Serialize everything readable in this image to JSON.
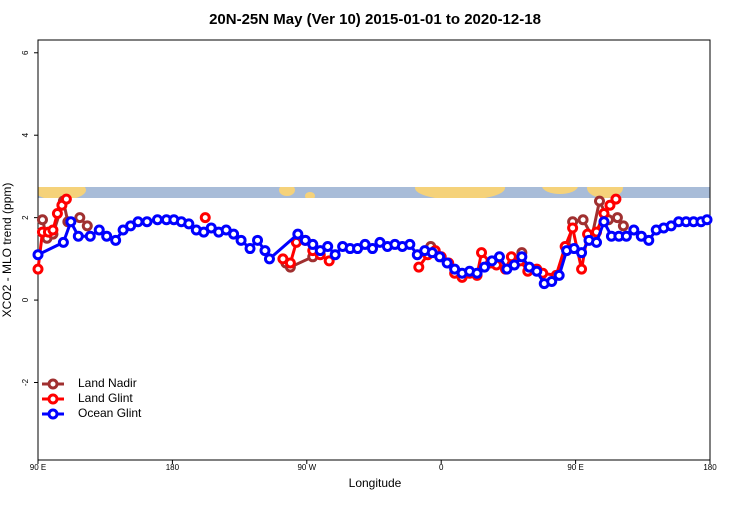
{
  "chart_data": {
    "type": "line",
    "title": "20N-25N May (Ver 10)   2015-01-01 to 2020-12-18",
    "x_label": "Longitude",
    "y_label": "XCO2 - MLO trend (ppm)",
    "xlim": [
      90,
      540
    ],
    "xticks": [
      {
        "value": 90,
        "label": "90 E"
      },
      180,
      {
        "value": 270,
        "label": "90 W"
      },
      {
        "value": 360,
        "label": "0"
      },
      {
        "value": 450,
        "label": "90 E"
      },
      {
        "value": 540,
        "label": "180"
      }
    ],
    "ylim": [
      -3.88,
      6.31
    ],
    "yticks": [
      -2,
      0,
      2,
      4,
      6
    ],
    "legend": "bottom-left",
    "series": [
      {
        "name": "Land Nadir",
        "color": "#a03030",
        "x": [
          93,
          96,
          100,
          107,
          110,
          118,
          123,
          256,
          259,
          274,
          353,
          414,
          445,
          448,
          455,
          461,
          466,
          472,
          478,
          482
        ],
        "values": [
          1.95,
          1.5,
          1.6,
          2.4,
          1.9,
          2.0,
          1.8,
          0.9,
          0.8,
          1.05,
          1.3,
          1.15,
          1.25,
          1.9,
          1.95,
          1.55,
          2.4,
          1.95,
          2.0,
          1.8
        ]
      },
      {
        "name": "Land Glint",
        "color": "#ff0000",
        "x": [
          90,
          93,
          97,
          100,
          103,
          106,
          109,
          202,
          254,
          259,
          263,
          269,
          274,
          279,
          285,
          345,
          351,
          356,
          360,
          365,
          369,
          374,
          379,
          384,
          387,
          393,
          397,
          403,
          407,
          413,
          418,
          424,
          428,
          437,
          443,
          448,
          454,
          458,
          464,
          469,
          473,
          477
        ],
        "values": [
          0.75,
          1.65,
          1.65,
          1.7,
          2.1,
          2.3,
          2.45,
          2.0,
          1.0,
          0.9,
          1.4,
          1.45,
          1.2,
          1.1,
          0.95,
          0.8,
          1.1,
          1.2,
          1.05,
          0.9,
          0.65,
          0.55,
          0.65,
          0.6,
          1.15,
          0.9,
          0.85,
          0.75,
          1.05,
          0.95,
          0.7,
          0.75,
          0.65,
          0.6,
          1.3,
          1.75,
          0.75,
          1.6,
          1.65,
          2.1,
          2.3,
          2.45
        ]
      },
      {
        "name": "Ocean Glint",
        "color": "#0000ff",
        "x": [
          90,
          107,
          112,
          117,
          125,
          131,
          136,
          142,
          147,
          152,
          157,
          163,
          170,
          176,
          181,
          186,
          191,
          196,
          201,
          206,
          211,
          216,
          221,
          226,
          232,
          237,
          242,
          245,
          264,
          269,
          274,
          279,
          284,
          289,
          294,
          299,
          304,
          309,
          314,
          319,
          324,
          329,
          334,
          339,
          344,
          349,
          354,
          359,
          364,
          369,
          374,
          379,
          384,
          389,
          394,
          399,
          404,
          409,
          414,
          419,
          424,
          429,
          434,
          439,
          444,
          449,
          454,
          459,
          464,
          469,
          474,
          479,
          484,
          489,
          494,
          499,
          504,
          509,
          514,
          519,
          524,
          529,
          534,
          538
        ],
        "values": [
          1.1,
          1.4,
          1.9,
          1.55,
          1.55,
          1.7,
          1.55,
          1.45,
          1.7,
          1.8,
          1.9,
          1.9,
          1.95,
          1.95,
          1.95,
          1.9,
          1.85,
          1.7,
          1.65,
          1.75,
          1.65,
          1.7,
          1.6,
          1.45,
          1.25,
          1.45,
          1.2,
          1.0,
          1.6,
          1.45,
          1.35,
          1.2,
          1.3,
          1.1,
          1.3,
          1.25,
          1.25,
          1.35,
          1.25,
          1.4,
          1.3,
          1.35,
          1.3,
          1.35,
          1.1,
          1.2,
          1.15,
          1.05,
          0.9,
          0.75,
          0.65,
          0.7,
          0.65,
          0.8,
          0.95,
          1.05,
          0.75,
          0.85,
          1.05,
          0.8,
          0.7,
          0.4,
          0.45,
          0.6,
          1.2,
          1.25,
          1.15,
          1.45,
          1.4,
          1.9,
          1.55,
          1.55,
          1.55,
          1.7,
          1.55,
          1.45,
          1.7,
          1.75,
          1.8,
          1.9,
          1.9,
          1.9,
          1.9,
          1.95
        ]
      }
    ]
  }
}
